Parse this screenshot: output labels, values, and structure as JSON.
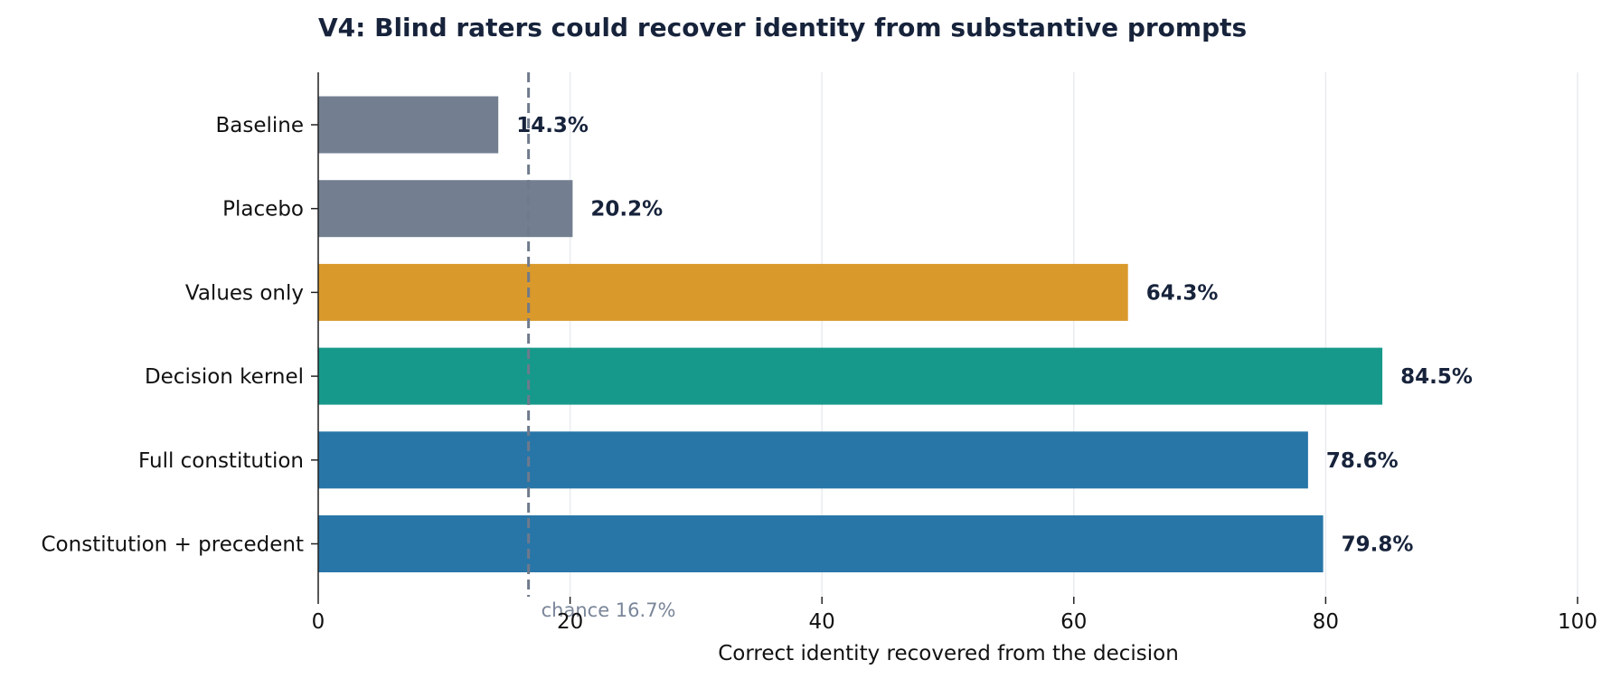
{
  "chart_data": {
    "type": "bar",
    "orientation": "horizontal",
    "title": "V4: Blind raters could recover identity from substantive prompts",
    "xlabel": "Correct identity recovered from the decision",
    "ylabel": "",
    "xlim": [
      0,
      100
    ],
    "xticks": [
      0,
      20,
      40,
      60,
      80,
      100
    ],
    "grid": "vertical",
    "categories": [
      "Baseline",
      "Placebo",
      "Values only",
      "Decision kernel",
      "Full constitution",
      "Constitution + precedent"
    ],
    "values": [
      14.3,
      20.2,
      64.3,
      84.5,
      78.6,
      79.8
    ],
    "value_labels": [
      "14.3%",
      "20.2%",
      "64.3%",
      "84.5%",
      "78.6%",
      "79.8%"
    ],
    "bar_colors": [
      "#737f90",
      "#737f90",
      "#d9992b",
      "#16998b",
      "#2876a8",
      "#2876a8"
    ],
    "reference_line": {
      "value": 16.7,
      "label": "chance 16.7%",
      "color": "#6f7a8c",
      "style": "dashed"
    }
  }
}
